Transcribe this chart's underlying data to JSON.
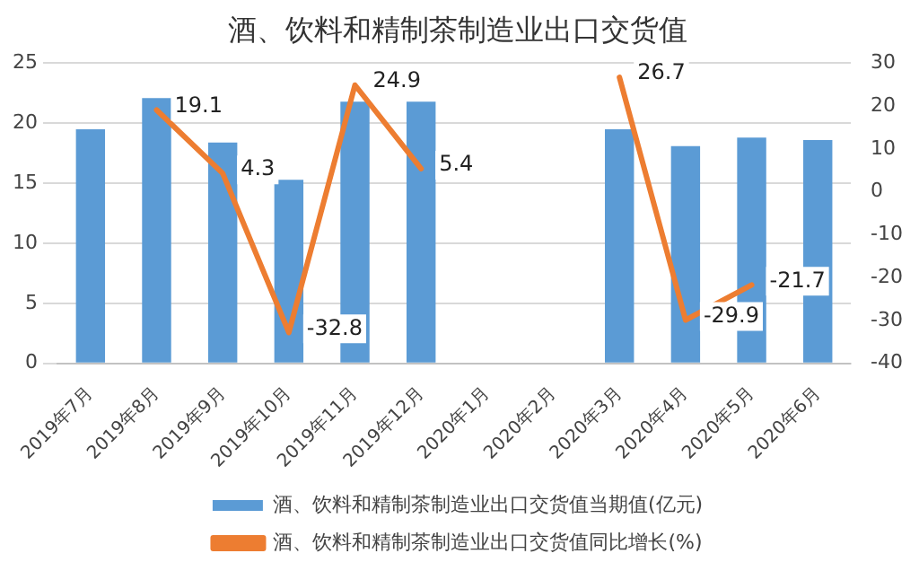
{
  "chart_data": {
    "type": "bar",
    "title": "酒、饮料和精制茶制造业出口交货值",
    "categories": [
      "2019年7月",
      "2019年8月",
      "2019年9月",
      "2019年10月",
      "2019年11月",
      "2019年12月",
      "2020年1月",
      "2020年2月",
      "2020年3月",
      "2020年4月",
      "2020年5月",
      "2020年6月"
    ],
    "series": [
      {
        "name": "酒、饮料和精制茶制造业出口交货值当期值(亿元)",
        "color": "#5b9bd5",
        "values": [
          19.5,
          22.1,
          18.4,
          15.3,
          21.8,
          21.8,
          null,
          null,
          19.5,
          18.1,
          18.8,
          18.6
        ]
      },
      {
        "name": "酒、饮料和精制茶制造业出口交货值同比增长(%)",
        "type": "line",
        "axis": "y2",
        "color": "#ed7d31",
        "values": [
          null,
          19.1,
          4.3,
          -32.8,
          24.9,
          5.4,
          null,
          null,
          26.7,
          -29.9,
          -21.7,
          null
        ],
        "value_labels": [
          null,
          "19.1",
          "4.3",
          "-32.8",
          "24.9",
          "5.4",
          null,
          null,
          "26.7",
          "-29.9",
          "-21.7",
          null
        ]
      }
    ],
    "ylim": [
      0,
      25
    ],
    "yticks": [
      0,
      5,
      10,
      15,
      20,
      25
    ],
    "y2lim": [
      -40,
      30
    ],
    "y2ticks": [
      -40,
      -30,
      -20,
      -10,
      0,
      10,
      20,
      30
    ],
    "grid": "y",
    "legend": "bottom",
    "marker": "none"
  }
}
